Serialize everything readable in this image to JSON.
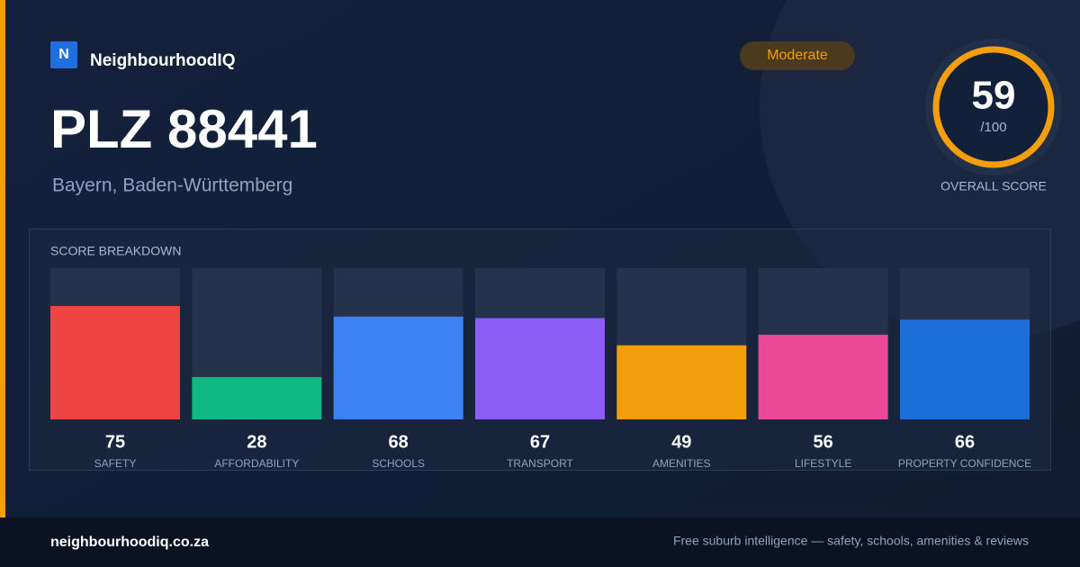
{
  "brand": {
    "logo": "N",
    "name": "NeighbourhoodIQ"
  },
  "badge": "Moderate",
  "title": "PLZ 88441",
  "location": "Bayern, Baden-Württemberg",
  "score": {
    "value": 59,
    "suffix": "/100",
    "label": "OVERALL SCORE"
  },
  "chart_data": {
    "type": "bar",
    "title": "SCORE BREAKDOWN",
    "categories": [
      "SAFETY",
      "AFFORDABILITY",
      "SCHOOLS",
      "TRANSPORT",
      "AMENITIES",
      "LIFESTYLE",
      "PROPERTY CONFIDENCE"
    ],
    "values": [
      75,
      28,
      68,
      67,
      49,
      56,
      66
    ],
    "colors": [
      "#ef4444",
      "#10b981",
      "#3b82f6",
      "#8b5cf6",
      "#f59e0b",
      "#ec4899",
      "#1d6fd8"
    ],
    "ylim": [
      0,
      100
    ]
  },
  "footer": {
    "site": "neighbourhoodiq.co.za",
    "tagline": "Free suburb intelligence — safety, schools, amenities & reviews"
  }
}
